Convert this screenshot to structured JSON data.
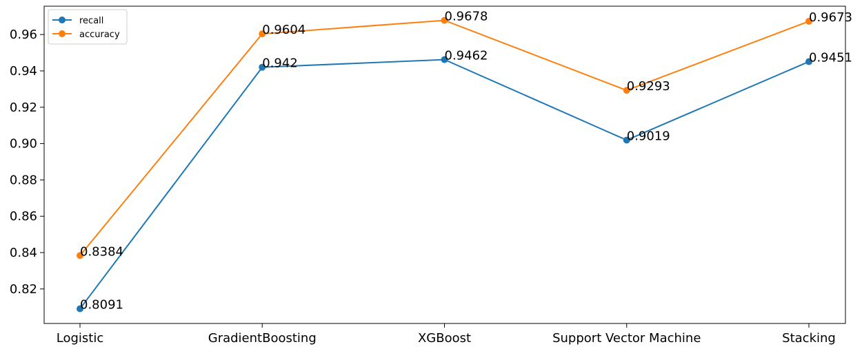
{
  "chart_data": {
    "type": "line",
    "categories": [
      "Logistic",
      "GradientBoosting",
      "XGBoost",
      "Support Vector Machine",
      "Stacking"
    ],
    "series": [
      {
        "name": "recall",
        "color": "#1f77b4",
        "values": [
          0.8091,
          0.942,
          0.9462,
          0.9019,
          0.9451
        ],
        "labels": [
          "0.8091",
          "0.942",
          "0.9462",
          "0.9019",
          "0.9451"
        ]
      },
      {
        "name": "accuracy",
        "color": "#ff7f0e",
        "values": [
          0.8384,
          0.9604,
          0.9678,
          0.9293,
          0.9673
        ],
        "labels": [
          "0.8384",
          "0.9604",
          "0.9678",
          "0.9293",
          "0.9673"
        ]
      }
    ],
    "yticks": [
      "0.82",
      "0.84",
      "0.86",
      "0.88",
      "0.90",
      "0.92",
      "0.94",
      "0.96"
    ],
    "ylim": [
      0.801,
      0.9756
    ],
    "title": "",
    "xlabel": "",
    "ylabel": "",
    "legend": "top-left",
    "grid": false
  }
}
